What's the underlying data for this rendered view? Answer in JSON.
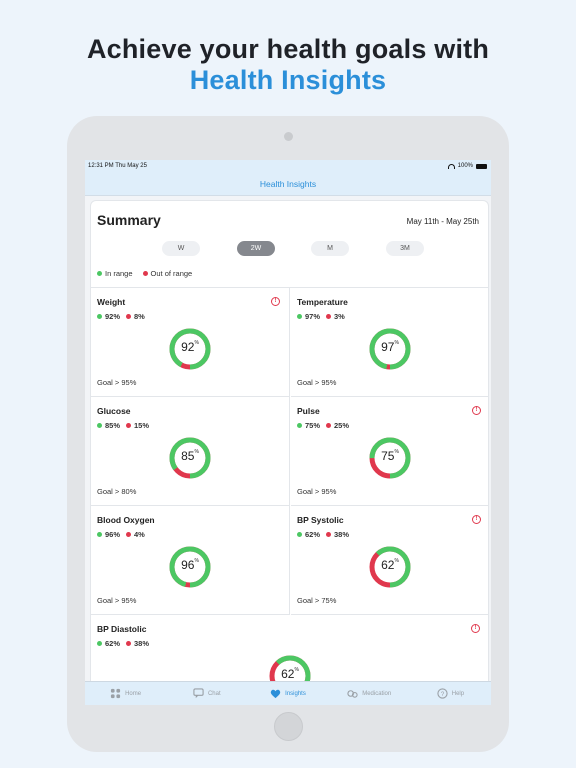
{
  "headline": {
    "line1": "Achieve your health goals with",
    "line2": "Health Insights"
  },
  "status_bar": {
    "time": "12:31 PM   Thu May 25",
    "battery": "100%"
  },
  "nav": {
    "title": "Health Insights"
  },
  "summary": {
    "title": "Summary",
    "date_range": "May 11th - May 25th",
    "periods": [
      "W",
      "2W",
      "M",
      "3M"
    ],
    "active_period": "2W",
    "legend": {
      "in_range": "In range",
      "out_of_range": "Out of range"
    }
  },
  "metrics": [
    {
      "name": "Weight",
      "in": "92%",
      "out": "8%",
      "value": "92",
      "unit": "%",
      "in_fraction": 0.92,
      "goal": "Goal > 95%",
      "warning": true
    },
    {
      "name": "Temperature",
      "in": "97%",
      "out": "3%",
      "value": "97",
      "unit": "%",
      "in_fraction": 0.97,
      "goal": "Goal > 95%",
      "warning": false
    },
    {
      "name": "Glucose",
      "in": "85%",
      "out": "15%",
      "value": "85",
      "unit": "%",
      "in_fraction": 0.85,
      "goal": "Goal > 80%",
      "warning": false
    },
    {
      "name": "Pulse",
      "in": "75%",
      "out": "25%",
      "value": "75",
      "unit": "%",
      "in_fraction": 0.75,
      "goal": "Goal > 95%",
      "warning": true
    },
    {
      "name": "Blood Oxygen",
      "in": "96%",
      "out": "4%",
      "value": "96",
      "unit": "%",
      "in_fraction": 0.96,
      "goal": "Goal > 95%",
      "warning": false
    },
    {
      "name": "BP Systolic",
      "in": "62%",
      "out": "38%",
      "value": "62",
      "unit": "%",
      "in_fraction": 0.62,
      "goal": "Goal > 75%",
      "warning": true
    },
    {
      "name": "BP Diastolic",
      "in": "62%",
      "out": "38%",
      "value": "62",
      "unit": "%",
      "in_fraction": 0.62,
      "goal": "",
      "warning": true
    }
  ],
  "tabs": [
    {
      "label": "Home",
      "icon": "home-icon"
    },
    {
      "label": "Chat",
      "icon": "chat-icon"
    },
    {
      "label": "Insights",
      "icon": "heart-icon",
      "active": true
    },
    {
      "label": "Medication",
      "icon": "pill-icon"
    },
    {
      "label": "Help",
      "icon": "help-icon"
    }
  ],
  "colors": {
    "accent": "#2b8fd9",
    "in_range": "#4cc763",
    "out_of_range": "#e0384d",
    "active_period_bg": "#85888e"
  }
}
